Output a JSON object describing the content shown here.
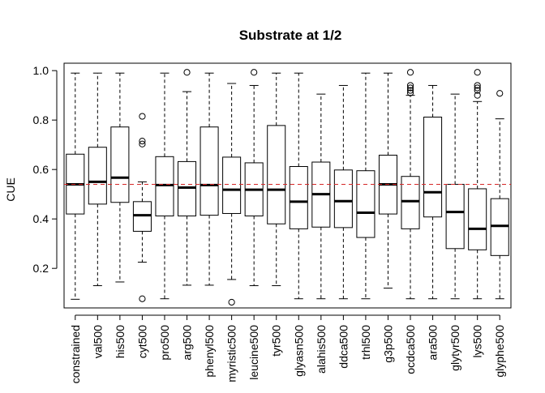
{
  "chart_data": {
    "type": "boxplot",
    "title": "Substrate at 1/2",
    "xlabel": "",
    "ylabel": "CUE",
    "ylim": [
      0.04,
      1.03
    ],
    "yticks": [
      0.2,
      0.4,
      0.6,
      0.8,
      1.0
    ],
    "ytick_labels": [
      "0.2",
      "0.4",
      "0.6",
      "0.8",
      "1.0"
    ],
    "reference_line": {
      "y": 0.54,
      "style": "dashed",
      "color": "#d62728"
    },
    "grid": false,
    "categories": [
      "constrained",
      "val500",
      "his500",
      "cyt500",
      "pro500",
      "arg500",
      "phenyl500",
      "myristic500",
      "leucine500",
      "tyr500",
      "glyasn500",
      "alahis500",
      "ddca500",
      "trhl500",
      "g3p500",
      "ocdca500",
      "ara500",
      "glytyr500",
      "lys500",
      "glyphe500"
    ],
    "boxes": [
      {
        "whisker_low": 0.075,
        "q1": 0.42,
        "median": 0.54,
        "q3": 0.662,
        "whisker_high": 0.99,
        "outliers": []
      },
      {
        "whisker_low": 0.13,
        "q1": 0.46,
        "median": 0.55,
        "q3": 0.69,
        "whisker_high": 0.99,
        "outliers": []
      },
      {
        "whisker_low": 0.145,
        "q1": 0.467,
        "median": 0.567,
        "q3": 0.772,
        "whisker_high": 0.99,
        "outliers": []
      },
      {
        "whisker_low": 0.225,
        "q1": 0.35,
        "median": 0.415,
        "q3": 0.47,
        "whisker_high": 0.55,
        "outliers": [
          0.815,
          0.715,
          0.703,
          0.077
        ]
      },
      {
        "whisker_low": 0.077,
        "q1": 0.412,
        "median": 0.537,
        "q3": 0.652,
        "whisker_high": 0.99,
        "outliers": []
      },
      {
        "whisker_low": 0.132,
        "q1": 0.412,
        "median": 0.527,
        "q3": 0.632,
        "whisker_high": 0.915,
        "outliers": [
          0.993
        ]
      },
      {
        "whisker_low": 0.132,
        "q1": 0.415,
        "median": 0.537,
        "q3": 0.772,
        "whisker_high": 0.99,
        "outliers": []
      },
      {
        "whisker_low": 0.155,
        "q1": 0.422,
        "median": 0.518,
        "q3": 0.65,
        "whisker_high": 0.948,
        "outliers": [
          0.063
        ]
      },
      {
        "whisker_low": 0.13,
        "q1": 0.412,
        "median": 0.518,
        "q3": 0.627,
        "whisker_high": 0.94,
        "outliers": [
          0.993
        ]
      },
      {
        "whisker_low": 0.13,
        "q1": 0.38,
        "median": 0.518,
        "q3": 0.778,
        "whisker_high": 0.99,
        "outliers": []
      },
      {
        "whisker_low": 0.077,
        "q1": 0.36,
        "median": 0.47,
        "q3": 0.612,
        "whisker_high": 0.99,
        "outliers": []
      },
      {
        "whisker_low": 0.077,
        "q1": 0.367,
        "median": 0.5,
        "q3": 0.63,
        "whisker_high": 0.905,
        "outliers": []
      },
      {
        "whisker_low": 0.077,
        "q1": 0.365,
        "median": 0.472,
        "q3": 0.598,
        "whisker_high": 0.94,
        "outliers": []
      },
      {
        "whisker_low": 0.077,
        "q1": 0.325,
        "median": 0.425,
        "q3": 0.595,
        "whisker_high": 0.99,
        "outliers": []
      },
      {
        "whisker_low": 0.12,
        "q1": 0.42,
        "median": 0.54,
        "q3": 0.658,
        "whisker_high": 0.99,
        "outliers": []
      },
      {
        "whisker_low": 0.077,
        "q1": 0.36,
        "median": 0.472,
        "q3": 0.572,
        "whisker_high": 0.9,
        "outliers": [
          0.993,
          0.94,
          0.93,
          0.92,
          0.91
        ]
      },
      {
        "whisker_low": 0.077,
        "q1": 0.408,
        "median": 0.508,
        "q3": 0.812,
        "whisker_high": 0.94,
        "outliers": []
      },
      {
        "whisker_low": 0.077,
        "q1": 0.28,
        "median": 0.428,
        "q3": 0.54,
        "whisker_high": 0.905,
        "outliers": []
      },
      {
        "whisker_low": 0.077,
        "q1": 0.275,
        "median": 0.36,
        "q3": 0.522,
        "whisker_high": 0.875,
        "outliers": [
          0.993,
          0.94,
          0.93,
          0.92,
          0.9
        ]
      },
      {
        "whisker_low": 0.077,
        "q1": 0.252,
        "median": 0.372,
        "q3": 0.482,
        "whisker_high": 0.805,
        "outliers": [
          0.908
        ]
      }
    ]
  }
}
